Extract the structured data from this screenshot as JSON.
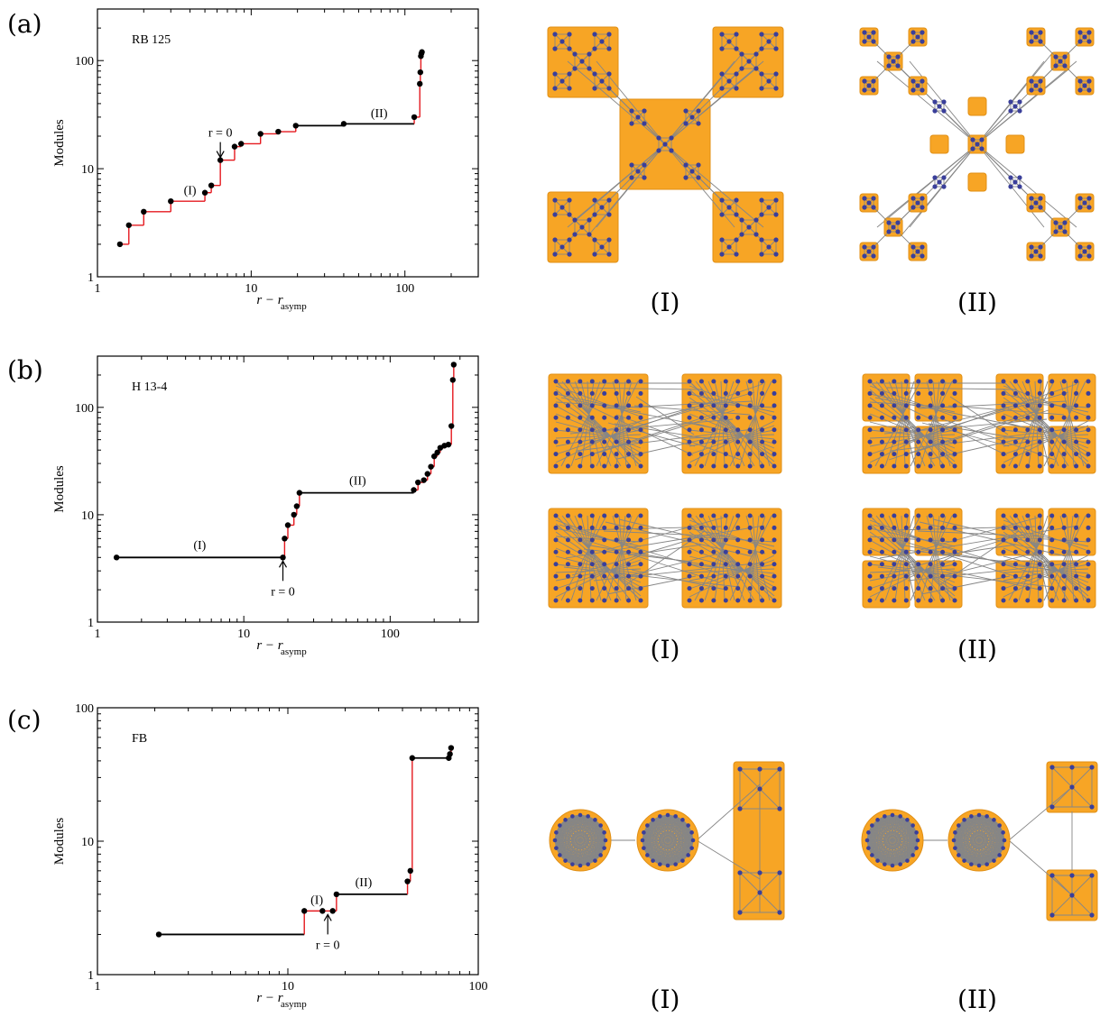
{
  "chart_data": [
    {
      "type": "line",
      "panel_label": "(a)",
      "name": "RB 125",
      "xlabel": "r − r",
      "xlabel_sub": "asymp",
      "ylabel": "Modules",
      "x_scale": "log",
      "y_scale": "log",
      "xlim": [
        1,
        300
      ],
      "ylim": [
        1,
        300
      ],
      "xticks": [
        1,
        10,
        100
      ],
      "xtick_labels": [
        "1",
        "10",
        "100"
      ],
      "yticks": [
        1,
        10,
        100
      ],
      "ytick_labels": [
        "1",
        "10",
        "100"
      ],
      "points": [
        [
          1.4,
          2
        ],
        [
          1.6,
          3
        ],
        [
          2.0,
          4
        ],
        [
          3.0,
          5
        ],
        [
          5.0,
          6
        ],
        [
          5.5,
          7
        ],
        [
          6.3,
          12
        ],
        [
          7.8,
          16
        ],
        [
          8.6,
          17
        ],
        [
          11.5,
          21
        ],
        [
          15.0,
          22
        ],
        [
          19.5,
          25
        ],
        [
          40,
          26
        ],
        [
          115,
          30
        ],
        [
          125,
          61
        ],
        [
          126,
          78
        ],
        [
          127,
          110
        ],
        [
          128,
          116
        ],
        [
          129,
          120
        ]
      ],
      "annotations": [
        {
          "text": "r = 0",
          "x": 6.3,
          "y": 12,
          "arrow": "down"
        },
        {
          "text": "(I)",
          "x": 4.0,
          "y": 5.8
        },
        {
          "text": "(II)",
          "x": 68,
          "y": 30
        }
      ]
    },
    {
      "type": "line",
      "panel_label": "(b)",
      "name": "H 13-4",
      "xlabel": "r − r",
      "xlabel_sub": "asymp",
      "ylabel": "Modules",
      "x_scale": "log",
      "y_scale": "log",
      "xlim": [
        1,
        400
      ],
      "ylim": [
        1,
        300
      ],
      "xticks": [
        1,
        10,
        100
      ],
      "xtick_labels": [
        "1",
        "10",
        "100"
      ],
      "yticks": [
        1,
        10,
        100
      ],
      "ytick_labels": [
        "1",
        "10",
        "100"
      ],
      "points": [
        [
          1.35,
          4
        ],
        [
          18.5,
          4
        ],
        [
          19,
          6
        ],
        [
          20,
          8
        ],
        [
          22,
          10
        ],
        [
          23,
          12
        ],
        [
          24,
          16
        ],
        [
          145,
          17
        ],
        [
          155,
          20
        ],
        [
          170,
          21
        ],
        [
          180,
          24
        ],
        [
          190,
          28
        ],
        [
          200,
          35
        ],
        [
          210,
          38
        ],
        [
          220,
          42
        ],
        [
          235,
          44
        ],
        [
          250,
          45
        ],
        [
          262,
          67
        ],
        [
          268,
          180
        ],
        [
          272,
          250
        ]
      ],
      "annotations": [
        {
          "text": "r = 0",
          "x": 18.5,
          "y": 4,
          "arrow": "up"
        },
        {
          "text": "(I)",
          "x": 5,
          "y": 4.8
        },
        {
          "text": "(II)",
          "x": 60,
          "y": 19
        }
      ]
    },
    {
      "type": "line",
      "panel_label": "(c)",
      "name": "FB",
      "xlabel": "r − r",
      "xlabel_sub": "asymp",
      "ylabel": "Modules",
      "x_scale": "log",
      "y_scale": "log",
      "xlim": [
        1,
        100
      ],
      "ylim": [
        1,
        100
      ],
      "xticks": [
        1,
        10,
        100
      ],
      "xtick_labels": [
        "1",
        "10",
        "100"
      ],
      "yticks": [
        1,
        10,
        100
      ],
      "ytick_labels": [
        "1",
        "10",
        "100"
      ],
      "points": [
        [
          2.1,
          2
        ],
        [
          12.2,
          3
        ],
        [
          15.2,
          3
        ],
        [
          17.2,
          3
        ],
        [
          18,
          4
        ],
        [
          42.5,
          5
        ],
        [
          44,
          6
        ],
        [
          45,
          42
        ],
        [
          70,
          42
        ],
        [
          71,
          45
        ],
        [
          72,
          50
        ]
      ],
      "annotations": [
        {
          "text": "r = 0",
          "x": 16.2,
          "y": 3,
          "arrow": "up"
        },
        {
          "text": "(I)",
          "x": 14.2,
          "y": 3.4
        },
        {
          "text": "(II)",
          "x": 25,
          "y": 4.6
        }
      ]
    }
  ],
  "network_captions": [
    "(I)",
    "(II)",
    "(I)",
    "(II)",
    "(I)",
    "(II)"
  ],
  "colors": {
    "step_line": "#e5191f",
    "flat_segment": "#000000",
    "module_fill": "#f7a525",
    "node": "#3a3f9a",
    "edge": "#868686"
  }
}
